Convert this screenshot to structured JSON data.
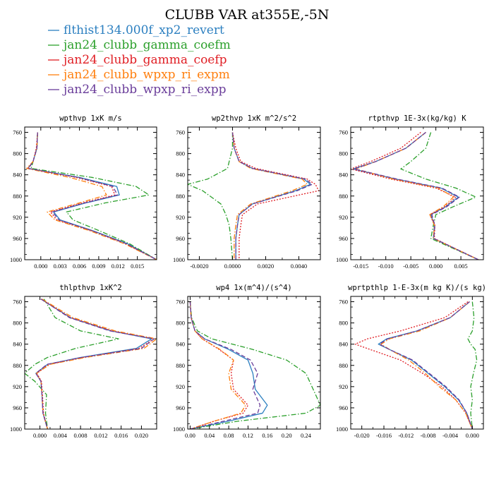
{
  "figure_title": "CLUBB VAR at355E,-5N",
  "legend": [
    {
      "name": "flthist134.000f_xp2_revert",
      "color": "#2b7fc0",
      "dash": "solid"
    },
    {
      "name": "jan24_clubb_gamma_coefm",
      "color": "#2ca02c",
      "dash": "dashdot"
    },
    {
      "name": "jan24_clubb_gamma_coefp",
      "color": "#e01e24",
      "dash": "dotted"
    },
    {
      "name": "jan24_clubb_wpxp_ri_expm",
      "color": "#ff7f0e",
      "dash": "dashdot"
    },
    {
      "name": "jan24_clubb_wpxp_ri_expp",
      "color": "#6a3d9a",
      "dash": "dashed"
    }
  ],
  "chart_data": [
    {
      "type": "line",
      "title": "wpthvp  1xK m/s",
      "xlim": [
        -0.0025,
        0.018
      ],
      "xticks": [
        0.0,
        0.003,
        0.006,
        0.009,
        0.012,
        0.015
      ],
      "xtick_labels": [
        "0.000",
        "0.003",
        "0.006",
        "0.009",
        "0.012",
        "0.015"
      ],
      "ylim": [
        1000,
        750
      ],
      "yticks": [
        760,
        800,
        840,
        880,
        920,
        960,
        1000
      ],
      "y": [
        760,
        790,
        815,
        828,
        845,
        862,
        878,
        893,
        910,
        925,
        945,
        970,
        1000
      ],
      "series": [
        {
          "name": "flthist134.000f_xp2_revert",
          "values": [
            -0.0005,
            -0.0006,
            -0.0012,
            -0.002,
            0.006,
            0.0118,
            0.0122,
            0.007,
            0.002,
            0.003,
            0.008,
            0.0135,
            0.018
          ]
        },
        {
          "name": "jan24_clubb_gamma_coefm",
          "values": [
            -0.0005,
            -0.0006,
            -0.0012,
            -0.0015,
            0.008,
            0.0148,
            0.0168,
            0.01,
            0.004,
            0.005,
            0.009,
            0.0138,
            0.018
          ]
        },
        {
          "name": "jan24_clubb_gamma_coefp",
          "values": [
            -0.0005,
            -0.0007,
            -0.0012,
            -0.002,
            0.0055,
            0.011,
            0.0115,
            0.0065,
            0.0015,
            0.0025,
            0.0078,
            0.0132,
            0.018
          ]
        },
        {
          "name": "jan24_clubb_wpxp_ri_expm",
          "values": [
            -0.0005,
            -0.0006,
            -0.0012,
            -0.0022,
            0.0045,
            0.0095,
            0.0102,
            0.006,
            0.001,
            0.0022,
            0.0075,
            0.013,
            0.018
          ]
        },
        {
          "name": "jan24_clubb_wpxp_ri_expp",
          "values": [
            -0.0005,
            -0.0006,
            -0.0012,
            -0.0019,
            0.0058,
            0.0112,
            0.0119,
            0.0068,
            0.0018,
            0.0028,
            0.0079,
            0.0133,
            0.018
          ]
        }
      ]
    },
    {
      "type": "line",
      "title": "wp2thvp  1xK m^2/s^2",
      "xlim": [
        -0.0027,
        0.0053
      ],
      "xticks": [
        -0.002,
        0.0,
        0.002,
        0.004
      ],
      "xtick_labels": [
        "-0.0020",
        "0.0000",
        "0.0020",
        "0.0040"
      ],
      "ylim": [
        1000,
        750
      ],
      "yticks": [
        760,
        800,
        840,
        880,
        920,
        960,
        1000
      ],
      "y": [
        760,
        790,
        815,
        828,
        848,
        858,
        870,
        895,
        915,
        935,
        960,
        1000
      ],
      "series": [
        {
          "name": "flthist134.000f_xp2_revert",
          "values": [
            0.0,
            0.0001,
            0.0004,
            0.0012,
            0.0043,
            0.0047,
            0.0038,
            0.0012,
            0.0004,
            0.0003,
            0.0002,
            0.0002
          ]
        },
        {
          "name": "jan24_clubb_gamma_coefm",
          "values": [
            0.0,
            0.0,
            -0.0002,
            -0.0003,
            -0.0015,
            -0.0027,
            -0.0018,
            -0.0007,
            -0.0004,
            -0.0002,
            -0.0001,
            0.0
          ]
        },
        {
          "name": "jan24_clubb_gamma_coefp",
          "values": [
            0.0,
            0.0002,
            0.0005,
            0.0014,
            0.0045,
            0.005,
            0.0052,
            0.0015,
            0.0006,
            0.0005,
            0.0004,
            0.0004
          ]
        },
        {
          "name": "jan24_clubb_wpxp_ri_expm",
          "values": [
            0.0,
            0.0001,
            0.0004,
            0.0011,
            0.0042,
            0.0045,
            0.0036,
            0.0011,
            0.0003,
            0.0002,
            0.0001,
            0.0001
          ]
        },
        {
          "name": "jan24_clubb_wpxp_ri_expp",
          "values": [
            0.0,
            0.0001,
            0.0004,
            0.0012,
            0.0044,
            0.0048,
            0.0039,
            0.0012,
            0.0004,
            0.0003,
            0.0002,
            0.0002
          ]
        }
      ]
    },
    {
      "type": "line",
      "title": "rtpthvp  1E-3x(kg/kg) K",
      "xlim": [
        -0.017,
        0.0095
      ],
      "xticks": [
        -0.015,
        -0.01,
        -0.005,
        0.0,
        0.005
      ],
      "xtick_labels": [
        "-0.015",
        "-0.010",
        "-0.005",
        "0.000",
        "0.005"
      ],
      "ylim": [
        1000,
        750
      ],
      "yticks": [
        760,
        800,
        840,
        880,
        920,
        960,
        1000
      ],
      "y": [
        760,
        790,
        815,
        829,
        848,
        865,
        882,
        900,
        915,
        935,
        960,
        1000
      ],
      "series": [
        {
          "name": "flthist134.000f_xp2_revert",
          "values": [
            -0.002,
            -0.006,
            -0.012,
            -0.0165,
            -0.008,
            0.001,
            0.0045,
            0.002,
            -0.001,
            -0.0003,
            -0.0005,
            0.0085
          ]
        },
        {
          "name": "jan24_clubb_gamma_coefm",
          "values": [
            -0.001,
            -0.002,
            -0.005,
            -0.007,
            -0.002,
            0.004,
            0.008,
            0.0035,
            0.0,
            -0.0005,
            -0.001,
            0.0085
          ]
        },
        {
          "name": "jan24_clubb_gamma_coefp",
          "values": [
            -0.003,
            -0.007,
            -0.013,
            -0.017,
            -0.009,
            0.0,
            0.004,
            0.0018,
            -0.0012,
            -0.0002,
            -0.0003,
            0.0085
          ]
        },
        {
          "name": "jan24_clubb_wpxp_ri_expm",
          "values": [
            -0.002,
            -0.006,
            -0.012,
            -0.016,
            -0.0085,
            0.0005,
            0.0035,
            0.0015,
            -0.0012,
            -0.0003,
            -0.0005,
            0.0085
          ]
        },
        {
          "name": "jan24_clubb_wpxp_ri_expp",
          "values": [
            -0.002,
            -0.006,
            -0.012,
            -0.0163,
            -0.0078,
            0.0012,
            0.0047,
            0.0022,
            -0.0008,
            -0.0002,
            -0.0004,
            0.0085
          ]
        }
      ]
    },
    {
      "type": "line",
      "title": "thlpthvp  1xK^2",
      "xlim": [
        -0.003,
        0.023
      ],
      "xticks": [
        0.0,
        0.004,
        0.008,
        0.012,
        0.016,
        0.02
      ],
      "xtick_labels": [
        "0.000",
        "0.004",
        "0.008",
        "0.012",
        "0.016",
        "0.020"
      ],
      "ylim": [
        1000,
        750
      ],
      "yticks": [
        760,
        800,
        840,
        880,
        920,
        960,
        1000
      ],
      "y": [
        755,
        790,
        815,
        830,
        848,
        865,
        878,
        895,
        910,
        935,
        970,
        1000
      ],
      "series": [
        {
          "name": "flthist134.000f_xp2_revert",
          "values": [
            0.0002,
            0.006,
            0.014,
            0.022,
            0.019,
            0.008,
            0.0015,
            -0.0008,
            0.0002,
            0.0004,
            0.0006,
            0.0015
          ]
        },
        {
          "name": "jan24_clubb_gamma_coefm",
          "values": [
            0.0008,
            0.003,
            0.008,
            0.0155,
            0.007,
            0.0015,
            -0.001,
            -0.003,
            -0.001,
            0.0013,
            0.0011,
            0.0015
          ]
        },
        {
          "name": "jan24_clubb_gamma_coefp",
          "values": [
            0.0002,
            0.006,
            0.0142,
            0.0225,
            0.0195,
            0.0085,
            0.0018,
            -0.0006,
            0.0003,
            0.0005,
            0.0007,
            0.0015
          ]
        },
        {
          "name": "jan24_clubb_wpxp_ri_expm",
          "values": [
            0.0004,
            0.0065,
            0.0148,
            0.023,
            0.0205,
            0.009,
            0.002,
            -0.0007,
            0.0002,
            0.0004,
            0.0006,
            0.0015
          ]
        },
        {
          "name": "jan24_clubb_wpxp_ri_expp",
          "values": [
            0.0002,
            0.0058,
            0.0138,
            0.0225,
            0.02,
            0.0082,
            0.0014,
            -0.0008,
            0.0002,
            0.0004,
            0.0006,
            0.0015
          ]
        }
      ]
    },
    {
      "type": "line",
      "title": "wp4  1x(m^4)/(s^4)",
      "xlim": [
        -0.005,
        0.27
      ],
      "xticks": [
        0.0,
        0.04,
        0.08,
        0.12,
        0.16,
        0.2,
        0.24
      ],
      "xtick_labels": [
        "0.00",
        "0.04",
        "0.08",
        "0.12",
        "0.16",
        "0.20",
        "0.24"
      ],
      "ylim": [
        1000,
        750
      ],
      "yticks": [
        760,
        800,
        840,
        880,
        920,
        960,
        1000
      ],
      "y": [
        760,
        790,
        815,
        830,
        850,
        870,
        895,
        925,
        955,
        970,
        985,
        1000
      ],
      "series": [
        {
          "name": "flthist134.000f_xp2_revert",
          "values": [
            0.0,
            0.002,
            0.01,
            0.03,
            0.08,
            0.12,
            0.13,
            0.135,
            0.16,
            0.15,
            0.08,
            0.0
          ]
        },
        {
          "name": "jan24_clubb_gamma_coefm",
          "values": [
            0.0,
            0.003,
            0.015,
            0.045,
            0.13,
            0.2,
            0.24,
            0.255,
            0.27,
            0.24,
            0.1,
            0.0
          ]
        },
        {
          "name": "jan24_clubb_gamma_coefp",
          "values": [
            0.0,
            0.002,
            0.01,
            0.025,
            0.06,
            0.09,
            0.085,
            0.09,
            0.12,
            0.11,
            0.05,
            0.0
          ]
        },
        {
          "name": "jan24_clubb_wpxp_ri_expm",
          "values": [
            0.0,
            0.002,
            0.01,
            0.025,
            0.062,
            0.09,
            0.08,
            0.085,
            0.115,
            0.105,
            0.05,
            0.0
          ]
        },
        {
          "name": "jan24_clubb_wpxp_ri_expp",
          "values": [
            0.0,
            0.002,
            0.01,
            0.03,
            0.085,
            0.125,
            0.14,
            0.13,
            0.145,
            0.14,
            0.07,
            0.0
          ]
        }
      ]
    },
    {
      "type": "line",
      "title": "wprtpthlp  1-E-3x(m kg K)/(s kg)",
      "xlim": [
        -0.022,
        0.002
      ],
      "xticks": [
        -0.02,
        -0.016,
        -0.012,
        -0.008,
        -0.004,
        0.0
      ],
      "xtick_labels": [
        "-0.020",
        "-0.016",
        "-0.012",
        "-0.008",
        "-0.004",
        "0.000"
      ],
      "ylim": [
        1000,
        750
      ],
      "yticks": [
        760,
        800,
        840,
        880,
        920,
        960,
        1000
      ],
      "y": [
        760,
        790,
        815,
        830,
        840,
        850,
        870,
        895,
        920,
        945,
        970,
        1000
      ],
      "series": [
        {
          "name": "flthist134.000f_xp2_revert",
          "values": [
            -0.0005,
            -0.004,
            -0.01,
            -0.0155,
            -0.017,
            -0.015,
            -0.011,
            -0.008,
            -0.005,
            -0.0025,
            -0.001,
            0.0
          ]
        },
        {
          "name": "jan24_clubb_gamma_coefm",
          "values": [
            0.0,
            0.0003,
            0.0,
            -0.0008,
            -0.0003,
            0.0005,
            0.0008,
            0.0002,
            -0.0003,
            0.0,
            -0.0003,
            0.0
          ]
        },
        {
          "name": "jan24_clubb_gamma_coefp",
          "values": [
            -0.0008,
            -0.005,
            -0.013,
            -0.019,
            -0.0212,
            -0.0185,
            -0.013,
            -0.009,
            -0.0055,
            -0.003,
            -0.0012,
            0.0
          ]
        },
        {
          "name": "jan24_clubb_wpxp_ri_expm",
          "values": [
            -0.0005,
            -0.004,
            -0.0095,
            -0.015,
            -0.0165,
            -0.015,
            -0.0115,
            -0.0085,
            -0.006,
            -0.003,
            -0.0012,
            0.0
          ]
        },
        {
          "name": "jan24_clubb_wpxp_ri_expp",
          "values": [
            -0.0005,
            -0.004,
            -0.01,
            -0.0153,
            -0.0168,
            -0.015,
            -0.0108,
            -0.0078,
            -0.0048,
            -0.0024,
            -0.001,
            0.0
          ]
        }
      ]
    }
  ]
}
